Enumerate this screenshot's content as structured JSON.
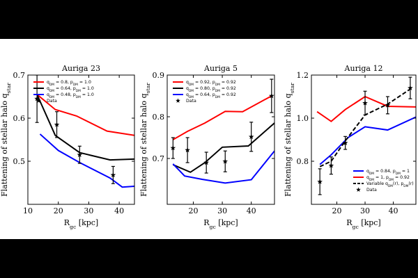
{
  "chart_data": [
    {
      "type": "line",
      "title": "Auriga 23",
      "xlabel_main": "R",
      "xlabel_sub": "gc",
      "xlabel_unit": "[kpc]",
      "ylabel_text": "Flattening of stellar halo q",
      "ylabel_sub": "star",
      "xlim": [
        10,
        45
      ],
      "ylim": [
        0.4,
        0.7
      ],
      "xticks": [
        10,
        20,
        30,
        40
      ],
      "yticks": [
        0.5,
        0.6,
        0.7
      ],
      "xtick_labels": [
        "10",
        "20",
        "30",
        "40"
      ],
      "ytick_labels": [
        "0.5",
        "0.6",
        "0.7"
      ],
      "series": [
        {
          "name": "q_DM = 0.8, p_DM = 1.0",
          "legend_main": "q",
          "legend_sub": "DM",
          "legend_rest": " = 0.8, p",
          "legend_sub2": "DM",
          "legend_end": " = 1.0",
          "color": "#ff0000",
          "dash": false,
          "x": [
            13,
            19,
            26,
            36,
            45
          ],
          "y": [
            0.655,
            0.62,
            0.605,
            0.57,
            0.56
          ]
        },
        {
          "name": "q_DM = 0.64, p_DM = 1.0",
          "legend_main": "q",
          "legend_sub": "DM",
          "legend_rest": " = 0.64, p",
          "legend_sub2": "DM",
          "legend_end": " = 1.0",
          "color": "#000000",
          "dash": false,
          "x": [
            13,
            19,
            27,
            37,
            45
          ],
          "y": [
            0.655,
            0.56,
            0.52,
            0.503,
            0.505
          ]
        },
        {
          "name": "q_DM = 0.48, p_DM = 1.0",
          "legend_main": "q",
          "legend_sub": "DM",
          "legend_rest": " = 0.48, p",
          "legend_sub2": "DM",
          "legend_end": " = 1.0",
          "color": "#0000ff",
          "dash": false,
          "x": [
            14,
            20,
            27,
            37,
            41,
            45
          ],
          "y": [
            0.563,
            0.525,
            0.497,
            0.461,
            0.44,
            0.442
          ]
        }
      ],
      "data_points": {
        "legend": "Data",
        "x": [
          13,
          19.5,
          27,
          38
        ],
        "y": [
          0.645,
          0.585,
          0.515,
          0.468
        ],
        "err": [
          0.055,
          0.03,
          0.02,
          0.02
        ]
      }
    },
    {
      "type": "line",
      "title": "Auriga 5",
      "xlabel_main": "R",
      "xlabel_sub": "gc",
      "xlabel_unit": "[kpc]",
      "ylabel_text": "Flattening of stellar halo q",
      "ylabel_sub": "star",
      "xlim": [
        11,
        48
      ],
      "ylim": [
        0.59,
        0.9
      ],
      "xticks": [
        20,
        30,
        40
      ],
      "yticks": [
        0.7,
        0.8,
        0.9
      ],
      "xtick_labels": [
        "20",
        "30",
        "40"
      ],
      "ytick_labels": [
        "0.7",
        "0.8",
        "0.9"
      ],
      "series": [
        {
          "name": "q_DM = 0.92, p_DM = 0.92",
          "legend_main": "q",
          "legend_sub": "DM",
          "legend_rest": " = 0.92, p",
          "legend_sub2": "DM",
          "legend_end": " = 0.92",
          "color": "#ff0000",
          "dash": false,
          "x": [
            13,
            18,
            24,
            31,
            37,
            47
          ],
          "y": [
            0.745,
            0.765,
            0.785,
            0.813,
            0.812,
            0.85
          ]
        },
        {
          "name": "q_DM = 0.80, p_DM = 0.92",
          "legend_main": "q",
          "legend_sub": "DM",
          "legend_rest": " = 0.80, p",
          "legend_sub2": "DM",
          "legend_end": " = 0.92",
          "color": "#000000",
          "dash": false,
          "x": [
            13,
            19,
            24,
            30,
            39,
            48
          ],
          "y": [
            0.685,
            0.667,
            0.69,
            0.727,
            0.73,
            0.785
          ]
        },
        {
          "name": "q_DM = 0.64, p_DM = 0.92",
          "legend_main": "q",
          "legend_sub": "DM",
          "legend_rest": " = 0.64, p",
          "legend_sub2": "DM",
          "legend_end": " = 0.92",
          "color": "#0000ff",
          "dash": false,
          "x": [
            13,
            17,
            23,
            31,
            40,
            48
          ],
          "y": [
            0.687,
            0.658,
            0.65,
            0.641,
            0.649,
            0.718
          ]
        }
      ],
      "data_points": {
        "legend": "Data",
        "x": [
          13,
          18,
          24.5,
          31,
          40,
          47
        ],
        "y": [
          0.725,
          0.72,
          0.69,
          0.693,
          0.752,
          0.85
        ],
        "err": [
          0.025,
          0.03,
          0.025,
          0.025,
          0.035,
          0.04
        ]
      }
    },
    {
      "type": "line",
      "title": "Auriga 12",
      "xlabel_main": "R",
      "xlabel_sub": "gc",
      "xlabel_unit": "[kpc]",
      "ylabel_text": "Flattening of stellar halo q",
      "ylabel_sub": "star",
      "xlim": [
        11,
        48
      ],
      "ylim": [
        0.6,
        1.2
      ],
      "xticks": [
        20,
        30,
        40
      ],
      "yticks": [
        0.8,
        1.0,
        1.2
      ],
      "xtick_labels": [
        "20",
        "30",
        "40"
      ],
      "ytick_labels": [
        "0.8",
        "1.0",
        "1.2"
      ],
      "series": [
        {
          "name": "q_DM = 0.84, p_DM = 1",
          "legend_main": "q",
          "legend_sub": "DM",
          "legend_rest": " = 0.84, p",
          "legend_sub2": "DM",
          "legend_end": " = 1",
          "color": "#0000ff",
          "dash": false,
          "x": [
            14,
            18,
            24,
            30,
            38,
            48
          ],
          "y": [
            0.785,
            0.83,
            0.91,
            0.96,
            0.945,
            1.005
          ]
        },
        {
          "name": "q_DM = 1, p_DM = 0.92",
          "legend_main": "q",
          "legend_sub": "DM",
          "legend_rest": " = 1, p",
          "legend_sub2": "DM",
          "legend_end": " = 0.92",
          "color": "#ff0000",
          "dash": false,
          "x": [
            13,
            18,
            23,
            30,
            38,
            48
          ],
          "y": [
            1.03,
            0.985,
            1.04,
            1.1,
            1.055,
            1.052
          ]
        },
        {
          "name": "Variable q_DM(r), p_DM(r)",
          "legend_main": "Variable q",
          "legend_sub": "DM",
          "legend_rest": "(r), p",
          "legend_sub2": "DM",
          "legend_end": "(r)",
          "color": "#000000",
          "dash": true,
          "x": [
            14,
            18,
            23,
            30,
            38,
            46
          ],
          "y": [
            0.775,
            0.8,
            0.895,
            1.015,
            1.065,
            1.135
          ]
        }
      ],
      "data_points": {
        "legend": "Data",
        "x": [
          14,
          18,
          23,
          30,
          38,
          46
        ],
        "y": [
          0.705,
          0.78,
          0.885,
          1.07,
          1.06,
          1.14
        ],
        "err": [
          0.06,
          0.04,
          0.03,
          0.055,
          0.04,
          0.05
        ]
      }
    }
  ]
}
